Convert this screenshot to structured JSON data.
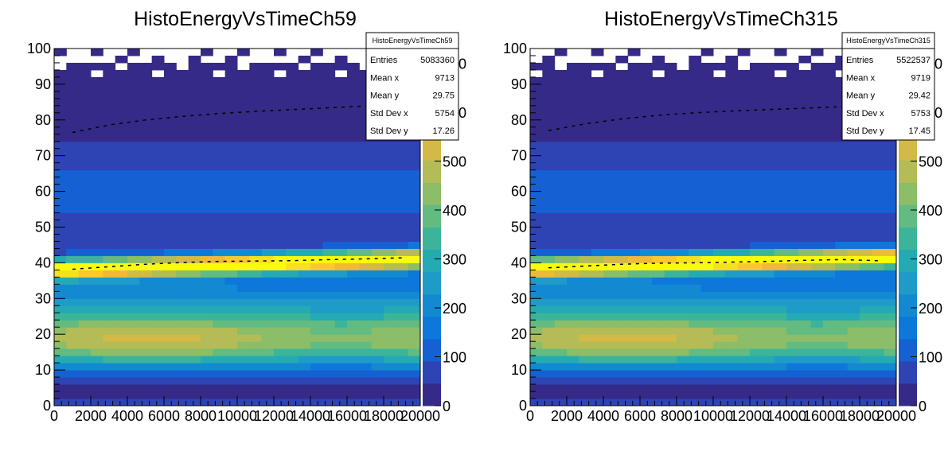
{
  "chart_data": [
    {
      "type": "heatmap",
      "title": "HistoEnergyVsTimeCh59",
      "x_ticks": [
        "0",
        "2000",
        "4000",
        "6000",
        "8000",
        "10000",
        "12000",
        "14000",
        "16000",
        "18000",
        "20000"
      ],
      "y_ticks": [
        "0",
        "10",
        "20",
        "30",
        "40",
        "50",
        "60",
        "70",
        "80",
        "90",
        "100"
      ],
      "z_ticks": [
        "0",
        "100",
        "200",
        "300",
        "400",
        "500",
        "600",
        "700"
      ],
      "xlim": [
        0,
        20000
      ],
      "ylim": [
        0,
        100
      ],
      "zlim": [
        0,
        730
      ],
      "mean_curve": [
        [
          1000,
          38.2
        ],
        [
          3000,
          38.9
        ],
        [
          5000,
          39.6
        ],
        [
          7000,
          40.1
        ],
        [
          9000,
          40.4
        ],
        [
          11000,
          40.5
        ],
        [
          13000,
          40.6
        ],
        [
          15000,
          40.9
        ],
        [
          17000,
          41.1
        ],
        [
          19000,
          41.4
        ]
      ],
      "upper_curve": [
        [
          1000,
          76.5
        ],
        [
          3000,
          78.6
        ],
        [
          5000,
          80.0
        ],
        [
          7000,
          81.0
        ],
        [
          9000,
          81.8
        ],
        [
          11000,
          82.4
        ],
        [
          13000,
          82.9
        ],
        [
          15000,
          83.4
        ],
        [
          17000,
          83.9
        ],
        [
          19000,
          84.5
        ]
      ],
      "stats": {
        "name": "HistoEnergyVsTimeCh59",
        "rows": [
          {
            "label": "Entries",
            "value": "5083360"
          },
          {
            "label": "Mean x",
            "value": "9713"
          },
          {
            "label": "Mean y",
            "value": "29.75"
          },
          {
            "label": "Std Dev x",
            "value": "5754"
          },
          {
            "label": "Std Dev y",
            "value": "17.26"
          }
        ]
      }
    },
    {
      "type": "heatmap",
      "title": "HistoEnergyVsTimeCh315",
      "x_ticks": [
        "0",
        "2000",
        "4000",
        "6000",
        "8000",
        "10000",
        "12000",
        "14000",
        "16000",
        "18000",
        "20000"
      ],
      "y_ticks": [
        "0",
        "10",
        "20",
        "30",
        "40",
        "50",
        "60",
        "70",
        "80",
        "90",
        "100"
      ],
      "z_ticks": [
        "0",
        "100",
        "200",
        "300",
        "400",
        "500",
        "600",
        "700"
      ],
      "xlim": [
        0,
        20000
      ],
      "ylim": [
        0,
        100
      ],
      "zlim": [
        0,
        730
      ],
      "mean_curve": [
        [
          1000,
          38.6
        ],
        [
          3000,
          39.1
        ],
        [
          5000,
          39.6
        ],
        [
          7000,
          39.9
        ],
        [
          9000,
          40.0
        ],
        [
          11000,
          40.2
        ],
        [
          13000,
          40.4
        ],
        [
          15000,
          40.7
        ],
        [
          17000,
          40.9
        ],
        [
          19000,
          40.6
        ]
      ],
      "upper_curve": [
        [
          1000,
          77.0
        ],
        [
          3000,
          78.9
        ],
        [
          5000,
          80.3
        ],
        [
          7000,
          81.3
        ],
        [
          9000,
          82.0
        ],
        [
          11000,
          82.5
        ],
        [
          13000,
          82.9
        ],
        [
          15000,
          83.3
        ],
        [
          17000,
          83.7
        ],
        [
          19000,
          84.2
        ]
      ],
      "stats": {
        "name": "HistoEnergyVsTimeCh315",
        "rows": [
          {
            "label": "Entries",
            "value": "5522537"
          },
          {
            "label": "Mean x",
            "value": "9719"
          },
          {
            "label": "Mean y",
            "value": "29.42"
          },
          {
            "label": "Std Dev x",
            "value": "5753"
          },
          {
            "label": "Std Dev y",
            "value": "17.45"
          }
        ]
      }
    }
  ],
  "colors": {
    "palette": [
      "#352a87",
      "#2e44b5",
      "#1560d3",
      "#0d77da",
      "#1389d2",
      "#1f9bc8",
      "#24aab3",
      "#3cb49a",
      "#62bb80",
      "#8cbd68",
      "#b3bc56",
      "#d3ba47",
      "#efb93a",
      "#fbc82e",
      "#f6e11f",
      "#f9fb0e"
    ],
    "axis": "#000000"
  }
}
